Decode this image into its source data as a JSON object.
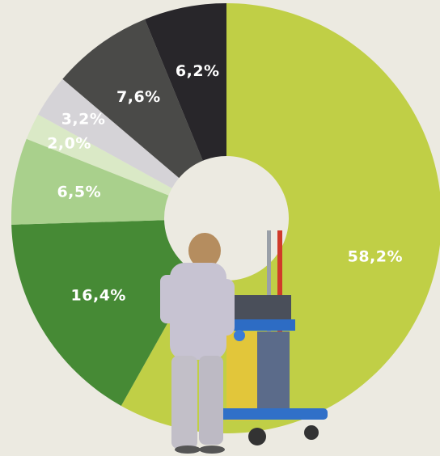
{
  "chart_data": {
    "type": "donut",
    "categories": [
      null,
      null,
      null,
      null,
      null,
      null,
      null
    ],
    "values": [
      58.2,
      16.4,
      6.5,
      2.0,
      3.2,
      7.6,
      6.2
    ],
    "value_labels": [
      "58,2%",
      "16,4%",
      "6,5%",
      "2,0%",
      "3,2%",
      "7,6%",
      "6,2%"
    ],
    "colors": [
      "#c0cf46",
      "#468a35",
      "#a9d08c",
      "#dae9c6",
      "#d5d3d7",
      "#4a4a48",
      "#28262a"
    ],
    "start_angle": 0,
    "direction": "clockwise"
  }
}
